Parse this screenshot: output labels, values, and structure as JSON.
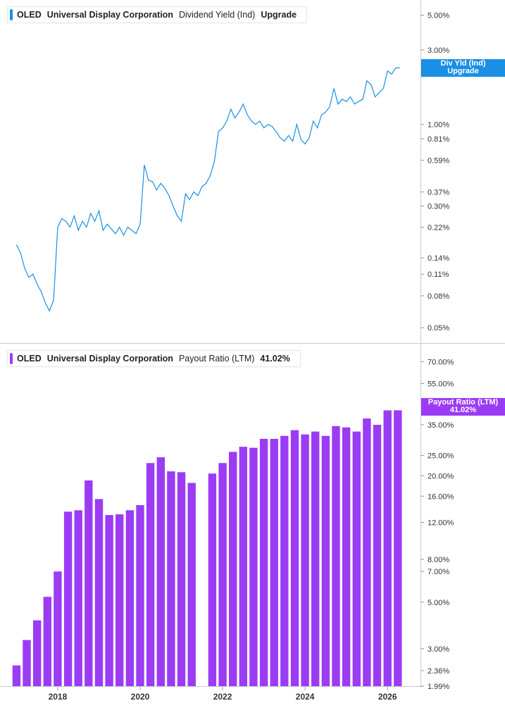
{
  "top_panel": {
    "ticker": "OLED",
    "company": "Universal Display Corporation",
    "metric": "Dividend Yield (Ind)",
    "extra": "Upgrade",
    "flag_line1": "Div Yld (Ind)",
    "flag_line2": "Upgrade",
    "color": "#1a8fe3"
  },
  "bottom_panel": {
    "ticker": "OLED",
    "company": "Universal Display Corporation",
    "metric": "Payout Ratio (LTM)",
    "extra": "41.02%",
    "flag_line1": "Payout Ratio (LTM)",
    "flag_line2": "41.02%",
    "color": "#9b3cf4"
  },
  "chart_data": [
    {
      "type": "line",
      "scale": "log",
      "y_ticks": [
        "5.00%",
        "3.00%",
        "1.00%",
        "0.81%",
        "0.59%",
        "0.37%",
        "0.30%",
        "0.22%",
        "0.14%",
        "0.11%",
        "0.08%",
        "0.05%"
      ],
      "y_tick_values": [
        5.0,
        3.0,
        1.0,
        0.81,
        0.59,
        0.37,
        0.3,
        0.22,
        0.14,
        0.11,
        0.08,
        0.05
      ],
      "ylim": [
        0.042,
        6.0
      ],
      "x_ticks": [
        "2018",
        "2020",
        "2022",
        "2024",
        "2026"
      ],
      "x_tick_years": [
        2018,
        2020,
        2022,
        2024,
        2026
      ],
      "xlim": [
        2016.6,
        2026.8
      ],
      "series": [
        {
          "x": [
            2017.0,
            2017.1,
            2017.2,
            2017.3,
            2017.4,
            2017.5,
            2017.6,
            2017.7,
            2017.8,
            2017.9,
            2018.0,
            2018.1,
            2018.2,
            2018.3,
            2018.4,
            2018.5,
            2018.6,
            2018.7,
            2018.8,
            2018.9,
            2019.0,
            2019.1,
            2019.2,
            2019.3,
            2019.4,
            2019.5,
            2019.6,
            2019.7,
            2019.8,
            2019.9,
            2020.0,
            2020.1,
            2020.2,
            2020.3,
            2020.4,
            2020.5,
            2020.6,
            2020.7,
            2020.8,
            2020.9,
            2021.0,
            2021.1,
            2021.2,
            2021.3,
            2021.4,
            2021.5,
            2021.6,
            2021.7,
            2021.8,
            2021.9,
            2022.0,
            2022.1,
            2022.2,
            2022.3,
            2022.4,
            2022.5,
            2022.6,
            2022.7,
            2022.8,
            2022.9,
            2023.0,
            2023.1,
            2023.2,
            2023.3,
            2023.4,
            2023.5,
            2023.6,
            2023.7,
            2023.8,
            2023.9,
            2024.0,
            2024.1,
            2024.2,
            2024.3,
            2024.4,
            2024.5,
            2024.6,
            2024.7,
            2024.8,
            2024.9,
            2025.0,
            2025.1,
            2025.2,
            2025.3,
            2025.4,
            2025.5,
            2025.6,
            2025.7,
            2025.8,
            2025.9,
            2026.0,
            2026.1,
            2026.2,
            2026.3
          ],
          "y": [
            0.17,
            0.15,
            0.12,
            0.105,
            0.11,
            0.095,
            0.085,
            0.072,
            0.064,
            0.075,
            0.22,
            0.25,
            0.24,
            0.22,
            0.26,
            0.21,
            0.24,
            0.22,
            0.27,
            0.24,
            0.28,
            0.21,
            0.23,
            0.215,
            0.2,
            0.22,
            0.195,
            0.22,
            0.21,
            0.2,
            0.23,
            0.55,
            0.44,
            0.43,
            0.38,
            0.42,
            0.39,
            0.35,
            0.3,
            0.26,
            0.24,
            0.36,
            0.33,
            0.37,
            0.35,
            0.4,
            0.42,
            0.47,
            0.58,
            0.9,
            0.95,
            1.05,
            1.25,
            1.1,
            1.2,
            1.35,
            1.15,
            1.05,
            1.0,
            1.05,
            0.95,
            1.0,
            0.97,
            0.9,
            0.82,
            0.78,
            0.85,
            0.78,
            1.0,
            0.8,
            0.75,
            0.82,
            1.05,
            0.95,
            1.15,
            1.2,
            1.3,
            1.7,
            1.35,
            1.45,
            1.4,
            1.5,
            1.35,
            1.4,
            1.45,
            1.9,
            1.8,
            1.5,
            1.6,
            1.7,
            2.2,
            2.1,
            2.3,
            2.3
          ]
        }
      ]
    },
    {
      "type": "bar",
      "scale": "log",
      "y_ticks": [
        "70.00%",
        "55.00%",
        "45.00%",
        "35.00%",
        "25.00%",
        "20.00%",
        "16.00%",
        "12.00%",
        "8.00%",
        "7.00%",
        "5.00%",
        "3.00%",
        "2.36%",
        "1.99%"
      ],
      "y_tick_values": [
        70,
        55,
        45,
        35,
        25,
        20,
        16,
        12,
        8,
        7,
        5,
        3,
        2.36,
        1.99
      ],
      "ylim": [
        1.99,
        80
      ],
      "x_ticks": [
        "2018",
        "2020",
        "2022",
        "2024",
        "2026"
      ],
      "x_tick_years": [
        2018,
        2020,
        2022,
        2024,
        2026
      ],
      "xlim": [
        2016.6,
        2026.8
      ],
      "series": [
        {
          "x": [
            2017.0,
            2017.25,
            2017.5,
            2017.75,
            2018.0,
            2018.25,
            2018.5,
            2018.75,
            2019.0,
            2019.25,
            2019.5,
            2019.75,
            2020.0,
            2020.25,
            2020.5,
            2020.75,
            2021.0,
            2021.25,
            2021.75,
            2022.0,
            2022.25,
            2022.5,
            2022.75,
            2023.0,
            2023.25,
            2023.5,
            2023.75,
            2024.0,
            2024.25,
            2024.5,
            2024.75,
            2025.0,
            2025.25,
            2025.5,
            2025.75,
            2026.0,
            2026.25
          ],
          "values": [
            2.5,
            3.3,
            4.1,
            5.3,
            7.0,
            13.5,
            13.7,
            19.0,
            15.5,
            13.0,
            13.1,
            13.7,
            14.5,
            23.0,
            24.5,
            21.0,
            20.8,
            18.5,
            20.5,
            23.0,
            26.0,
            27.5,
            27.2,
            30.0,
            30.0,
            31.0,
            33.0,
            31.5,
            32.5,
            31.0,
            34.5,
            34.0,
            32.5,
            37.5,
            35.0,
            41.0,
            41.02
          ]
        }
      ]
    }
  ]
}
